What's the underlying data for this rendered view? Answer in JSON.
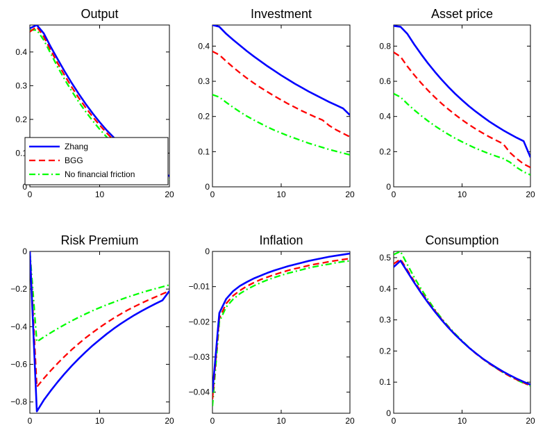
{
  "chart_data": [
    {
      "type": "line",
      "title": "Output",
      "xlim": [
        0,
        20
      ],
      "ylim": [
        0,
        0.48
      ],
      "xticks": [
        0,
        10,
        20
      ],
      "yticks": [
        0,
        0.1,
        0.2,
        0.3,
        0.4
      ],
      "ytick_labels": [
        "0",
        "0.1",
        "0.2",
        "0.3",
        "0.4"
      ],
      "legend": {
        "placement": "bottom-left",
        "entries": [
          "Zhang",
          "BGG",
          "No financial friction"
        ]
      },
      "series": [
        {
          "name": "Zhang",
          "x": [
            0,
            1,
            2,
            3,
            4,
            5,
            6,
            7,
            8,
            9,
            10,
            11,
            12,
            13,
            14,
            15,
            16,
            17,
            18,
            19,
            20
          ],
          "values": [
            0.47,
            0.48,
            0.455,
            0.415,
            0.378,
            0.342,
            0.308,
            0.276,
            0.246,
            0.218,
            0.192,
            0.168,
            0.147,
            0.127,
            0.109,
            0.093,
            0.078,
            0.065,
            0.053,
            0.042,
            0.032
          ]
        },
        {
          "name": "BGG",
          "x": [
            0,
            1,
            2,
            3,
            4,
            5,
            6,
            7,
            8,
            9,
            10,
            11,
            12,
            13,
            14,
            15,
            16,
            17,
            18,
            19,
            20
          ],
          "values": [
            0.46,
            0.475,
            0.445,
            0.405,
            0.366,
            0.33,
            0.296,
            0.264,
            0.235,
            0.208,
            0.183,
            0.16,
            0.139,
            0.12,
            0.103,
            0.088,
            0.074,
            0.061,
            0.049,
            0.038,
            0.028
          ]
        },
        {
          "name": "No financial friction",
          "x": [
            0,
            1,
            2,
            3,
            4,
            5,
            6,
            7,
            8,
            9,
            10,
            11,
            12,
            13,
            14,
            15,
            16,
            17,
            18,
            19,
            20
          ],
          "values": [
            0.465,
            0.465,
            0.435,
            0.395,
            0.355,
            0.318,
            0.284,
            0.252,
            0.223,
            0.196,
            0.171,
            0.148,
            0.128,
            0.109,
            0.093,
            0.078,
            0.064,
            0.052,
            0.041,
            0.031,
            0.022
          ]
        }
      ]
    },
    {
      "type": "line",
      "title": "Investment",
      "xlim": [
        0,
        20
      ],
      "ylim": [
        0,
        0.46
      ],
      "xticks": [
        0,
        10,
        20
      ],
      "yticks": [
        0,
        0.1,
        0.2,
        0.3,
        0.4
      ],
      "ytick_labels": [
        "0",
        "0.1",
        "0.2",
        "0.3",
        "0.4"
      ],
      "series": [
        {
          "name": "Zhang",
          "x": [
            0,
            1,
            2,
            3,
            4,
            5,
            6,
            7,
            8,
            9,
            10,
            11,
            12,
            13,
            14,
            15,
            16,
            17,
            18,
            19,
            20
          ],
          "values": [
            0.46,
            0.455,
            0.435,
            0.418,
            0.402,
            0.386,
            0.371,
            0.357,
            0.343,
            0.33,
            0.317,
            0.305,
            0.293,
            0.282,
            0.271,
            0.261,
            0.251,
            0.241,
            0.232,
            0.223,
            0.204
          ]
        },
        {
          "name": "BGG",
          "x": [
            0,
            1,
            2,
            3,
            4,
            5,
            6,
            7,
            8,
            9,
            10,
            11,
            12,
            13,
            14,
            15,
            16,
            17,
            18,
            19,
            20
          ],
          "values": [
            0.385,
            0.375,
            0.357,
            0.34,
            0.324,
            0.309,
            0.295,
            0.282,
            0.27,
            0.258,
            0.247,
            0.236,
            0.226,
            0.216,
            0.207,
            0.198,
            0.19,
            0.174,
            0.162,
            0.152,
            0.142
          ]
        },
        {
          "name": "No financial friction",
          "x": [
            0,
            1,
            2,
            3,
            4,
            5,
            6,
            7,
            8,
            9,
            10,
            11,
            12,
            13,
            14,
            15,
            16,
            17,
            18,
            19,
            20
          ],
          "values": [
            0.262,
            0.255,
            0.24,
            0.226,
            0.213,
            0.201,
            0.19,
            0.18,
            0.17,
            0.161,
            0.153,
            0.145,
            0.138,
            0.131,
            0.124,
            0.118,
            0.112,
            0.106,
            0.101,
            0.096,
            0.091
          ]
        }
      ]
    },
    {
      "type": "line",
      "title": "Asset price",
      "xlim": [
        0,
        20
      ],
      "ylim": [
        0,
        0.92
      ],
      "xticks": [
        0,
        10,
        20
      ],
      "yticks": [
        0,
        0.2,
        0.4,
        0.6,
        0.8
      ],
      "ytick_labels": [
        "0",
        "0.2",
        "0.4",
        "0.6",
        "0.8"
      ],
      "series": [
        {
          "name": "Zhang",
          "x": [
            0,
            1,
            2,
            3,
            4,
            5,
            6,
            7,
            8,
            9,
            10,
            11,
            12,
            13,
            14,
            15,
            16,
            17,
            18,
            19,
            20
          ],
          "values": [
            0.915,
            0.91,
            0.87,
            0.81,
            0.755,
            0.703,
            0.655,
            0.61,
            0.568,
            0.529,
            0.493,
            0.459,
            0.428,
            0.399,
            0.371,
            0.346,
            0.322,
            0.3,
            0.279,
            0.26,
            0.168
          ]
        },
        {
          "name": "BGG",
          "x": [
            0,
            1,
            2,
            3,
            4,
            5,
            6,
            7,
            8,
            9,
            10,
            11,
            12,
            13,
            14,
            15,
            16,
            17,
            18,
            19,
            20
          ],
          "values": [
            0.765,
            0.74,
            0.685,
            0.636,
            0.591,
            0.549,
            0.51,
            0.474,
            0.441,
            0.41,
            0.381,
            0.354,
            0.329,
            0.306,
            0.284,
            0.264,
            0.245,
            0.195,
            0.16,
            0.13,
            0.11
          ]
        },
        {
          "name": "No financial friction",
          "x": [
            0,
            1,
            2,
            3,
            4,
            5,
            6,
            7,
            8,
            9,
            10,
            11,
            12,
            13,
            14,
            15,
            16,
            17,
            18,
            19,
            20
          ],
          "values": [
            0.53,
            0.51,
            0.472,
            0.437,
            0.405,
            0.375,
            0.347,
            0.322,
            0.298,
            0.276,
            0.256,
            0.237,
            0.219,
            0.203,
            0.188,
            0.174,
            0.161,
            0.14,
            0.11,
            0.085,
            0.068
          ]
        }
      ]
    },
    {
      "type": "line",
      "title": "Risk Premium",
      "xlim": [
        0,
        20
      ],
      "ylim": [
        -0.86,
        0
      ],
      "xticks": [
        0,
        10,
        20
      ],
      "yticks": [
        -0.8,
        -0.6,
        -0.4,
        -0.2,
        0
      ],
      "ytick_labels": [
        "−0.8",
        "−0.6",
        "−0.4",
        "−0.2",
        "0"
      ],
      "series": [
        {
          "name": "Zhang",
          "x": [
            0,
            1,
            2,
            3,
            4,
            5,
            6,
            7,
            8,
            9,
            10,
            11,
            12,
            13,
            14,
            15,
            16,
            17,
            18,
            19,
            20
          ],
          "values": [
            0,
            -0.85,
            -0.79,
            -0.74,
            -0.693,
            -0.649,
            -0.608,
            -0.57,
            -0.534,
            -0.5,
            -0.469,
            -0.439,
            -0.411,
            -0.385,
            -0.361,
            -0.338,
            -0.317,
            -0.297,
            -0.278,
            -0.26,
            -0.21
          ]
        },
        {
          "name": "BGG",
          "x": [
            0,
            1,
            2,
            3,
            4,
            5,
            6,
            7,
            8,
            9,
            10,
            11,
            12,
            13,
            14,
            15,
            16,
            17,
            18,
            19,
            20
          ],
          "values": [
            0,
            -0.72,
            -0.675,
            -0.633,
            -0.594,
            -0.557,
            -0.522,
            -0.49,
            -0.459,
            -0.431,
            -0.404,
            -0.379,
            -0.355,
            -0.333,
            -0.312,
            -0.293,
            -0.275,
            -0.258,
            -0.242,
            -0.226,
            -0.21
          ]
        },
        {
          "name": "No financial friction",
          "x": [
            0,
            1,
            2,
            3,
            4,
            5,
            6,
            7,
            8,
            9,
            10,
            11,
            12,
            13,
            14,
            15,
            16,
            17,
            18,
            19,
            20
          ],
          "values": [
            0,
            -0.48,
            -0.455,
            -0.432,
            -0.41,
            -0.389,
            -0.369,
            -0.35,
            -0.332,
            -0.315,
            -0.299,
            -0.284,
            -0.27,
            -0.256,
            -0.243,
            -0.231,
            -0.219,
            -0.208,
            -0.198,
            -0.188,
            -0.178
          ]
        }
      ]
    },
    {
      "type": "line",
      "title": "Inflation",
      "xlim": [
        0,
        20
      ],
      "ylim": [
        -0.046,
        0
      ],
      "xticks": [
        0,
        10,
        20
      ],
      "yticks": [
        -0.04,
        -0.03,
        -0.02,
        -0.01,
        0
      ],
      "ytick_labels": [
        "−0.04",
        "−0.03",
        "−0.02",
        "−0.01",
        "0"
      ],
      "series": [
        {
          "name": "Zhang",
          "x": [
            0,
            1,
            2,
            3,
            4,
            5,
            6,
            7,
            8,
            9,
            10,
            11,
            12,
            13,
            14,
            15,
            16,
            17,
            18,
            19,
            20
          ],
          "values": [
            -0.04,
            -0.0175,
            -0.0135,
            -0.0113,
            -0.0098,
            -0.0087,
            -0.0077,
            -0.0069,
            -0.0061,
            -0.0054,
            -0.0048,
            -0.0042,
            -0.0037,
            -0.0032,
            -0.0027,
            -0.0023,
            -0.0019,
            -0.0015,
            -0.0012,
            -0.0009,
            -0.0006
          ]
        },
        {
          "name": "BGG",
          "x": [
            0,
            1,
            2,
            3,
            4,
            5,
            6,
            7,
            8,
            9,
            10,
            11,
            12,
            13,
            14,
            15,
            16,
            17,
            18,
            19,
            20
          ],
          "values": [
            -0.042,
            -0.019,
            -0.0148,
            -0.0126,
            -0.0111,
            -0.0099,
            -0.0089,
            -0.008,
            -0.0073,
            -0.0066,
            -0.006,
            -0.0054,
            -0.0049,
            -0.0045,
            -0.004,
            -0.0036,
            -0.0033,
            -0.0029,
            -0.0026,
            -0.0023,
            -0.002
          ]
        },
        {
          "name": "No financial friction",
          "x": [
            0,
            1,
            2,
            3,
            4,
            5,
            6,
            7,
            8,
            9,
            10,
            11,
            12,
            13,
            14,
            15,
            16,
            17,
            18,
            19,
            20
          ],
          "values": [
            -0.044,
            -0.02,
            -0.0158,
            -0.0136,
            -0.012,
            -0.0108,
            -0.0098,
            -0.0089,
            -0.0081,
            -0.0074,
            -0.0068,
            -0.0062,
            -0.0057,
            -0.0052,
            -0.0047,
            -0.0043,
            -0.0039,
            -0.0036,
            -0.0032,
            -0.0029,
            -0.0027
          ]
        }
      ]
    },
    {
      "type": "line",
      "title": "Consumption",
      "xlim": [
        0,
        20
      ],
      "ylim": [
        0,
        0.52
      ],
      "xticks": [
        0,
        10,
        20
      ],
      "yticks": [
        0,
        0.1,
        0.2,
        0.3,
        0.4,
        0.5
      ],
      "ytick_labels": [
        "0",
        "0.1",
        "0.2",
        "0.3",
        "0.4",
        "0.5"
      ],
      "series": [
        {
          "name": "Zhang",
          "x": [
            0,
            1,
            2,
            3,
            4,
            5,
            6,
            7,
            8,
            9,
            10,
            11,
            12,
            13,
            14,
            15,
            16,
            17,
            18,
            19,
            20
          ],
          "values": [
            0.47,
            0.49,
            0.455,
            0.42,
            0.387,
            0.356,
            0.327,
            0.3,
            0.275,
            0.252,
            0.231,
            0.211,
            0.193,
            0.176,
            0.161,
            0.147,
            0.134,
            0.122,
            0.111,
            0.101,
            0.092
          ]
        },
        {
          "name": "BGG",
          "x": [
            0,
            1,
            2,
            3,
            4,
            5,
            6,
            7,
            8,
            9,
            10,
            11,
            12,
            13,
            14,
            15,
            16,
            17,
            18,
            19,
            20
          ],
          "values": [
            0.48,
            0.495,
            0.46,
            0.424,
            0.391,
            0.359,
            0.33,
            0.302,
            0.277,
            0.253,
            0.231,
            0.211,
            0.192,
            0.175,
            0.159,
            0.145,
            0.131,
            0.119,
            0.108,
            0.098,
            0.089
          ]
        },
        {
          "name": "No financial friction",
          "x": [
            0,
            1,
            2,
            3,
            4,
            5,
            6,
            7,
            8,
            9,
            10,
            11,
            12,
            13,
            14,
            15,
            16,
            17,
            18,
            19,
            20
          ],
          "values": [
            0.51,
            0.52,
            0.478,
            0.437,
            0.4,
            0.366,
            0.334,
            0.305,
            0.279,
            0.255,
            0.233,
            0.212,
            0.193,
            0.176,
            0.16,
            0.145,
            0.131,
            0.119,
            0.107,
            0.097,
            0.088
          ]
        }
      ]
    }
  ],
  "style": {
    "colors": {
      "Zhang": "#0000ff",
      "BGG": "#ff0000",
      "No financial friction": "#00ff00"
    },
    "line_styles": {
      "Zhang": "solid",
      "BGG": "dashed",
      "No financial friction": "dash-dot"
    }
  }
}
